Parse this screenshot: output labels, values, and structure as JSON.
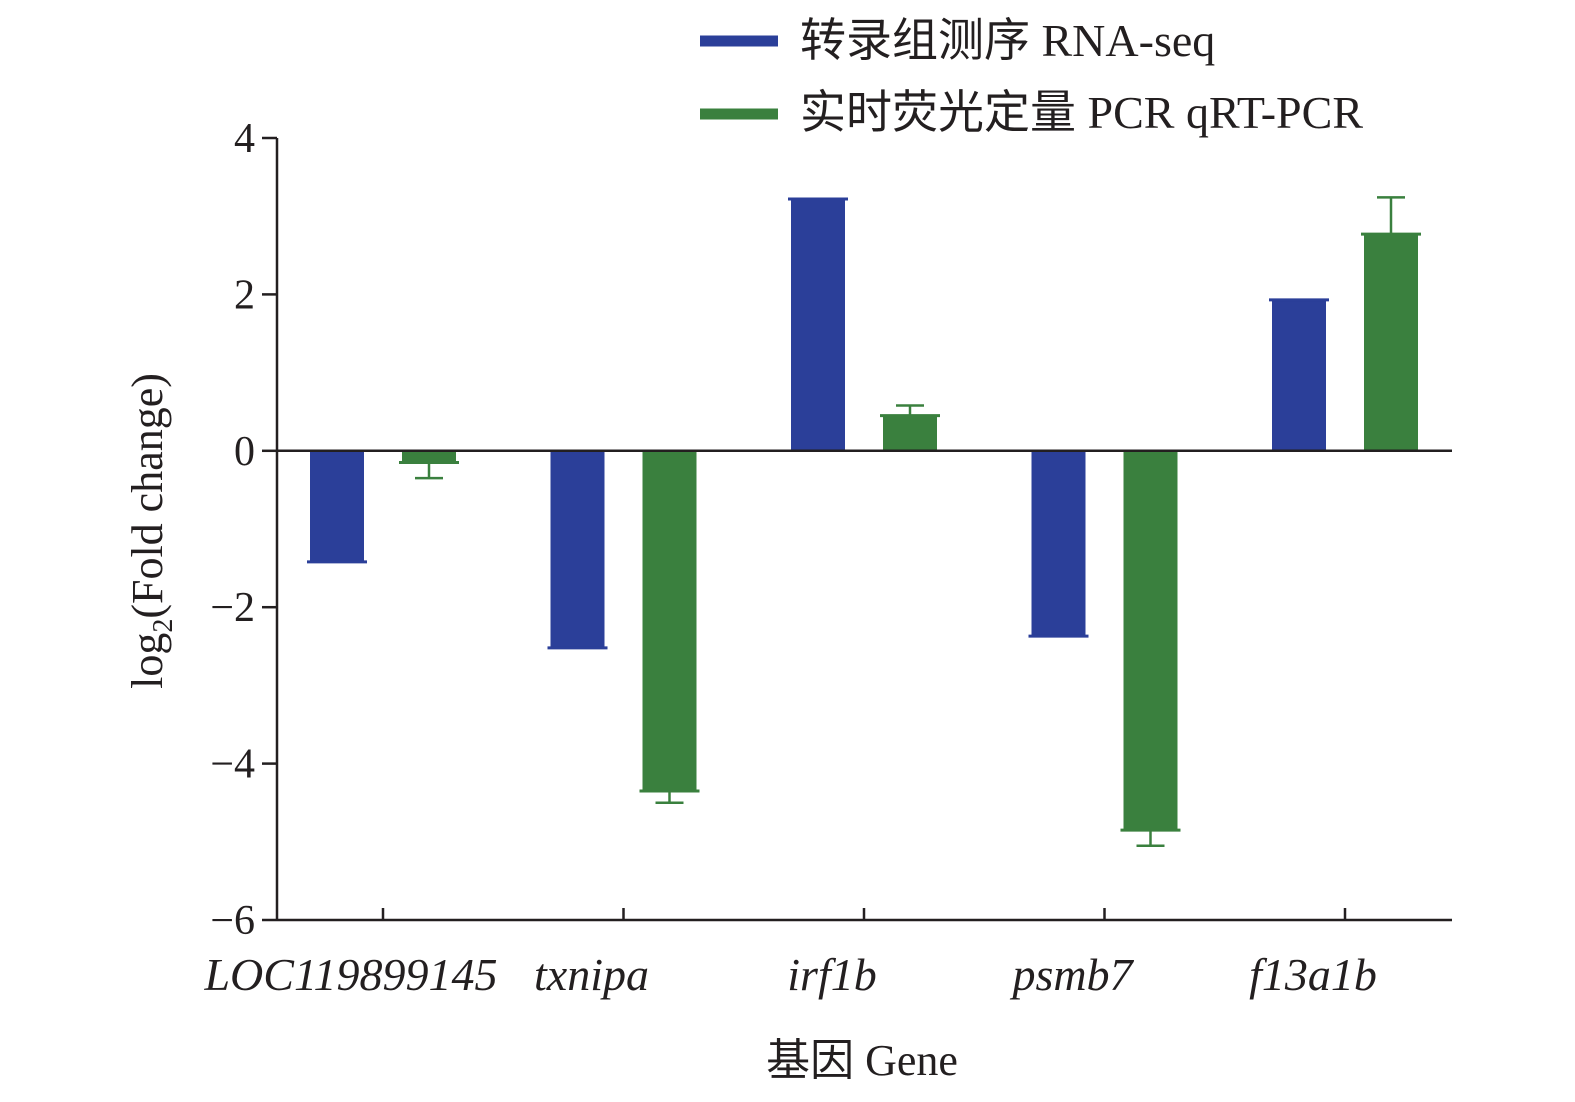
{
  "chart_data": {
    "type": "bar",
    "categories": [
      "LOC119899145",
      "txnipa",
      "irf1b",
      "psmb7",
      "f13a1b"
    ],
    "series": [
      {
        "name": "转录组测序 RNA-seq",
        "color": "#2b3f99",
        "values": [
          -1.42,
          -2.52,
          3.22,
          -2.37,
          1.93
        ]
      },
      {
        "name": "实时荧光定量 PCR qRT-PCR",
        "color": "#3a803e",
        "values": [
          -0.15,
          -4.35,
          0.45,
          -4.85,
          2.77
        ],
        "error": [
          0.2,
          0.15,
          0.13,
          0.2,
          0.47
        ]
      }
    ],
    "ylim": [
      -6,
      4
    ],
    "yticks": [
      4,
      2,
      0,
      -2,
      -4,
      -6
    ],
    "ytick_labels": [
      "4",
      "2",
      "0",
      "−2",
      "−4",
      "−6"
    ],
    "xlabel": "基因 Gene",
    "ylabel": {
      "prefix": "log",
      "subscript": "2",
      "suffix": "(Fold change)"
    },
    "legend_position": "top-right"
  }
}
